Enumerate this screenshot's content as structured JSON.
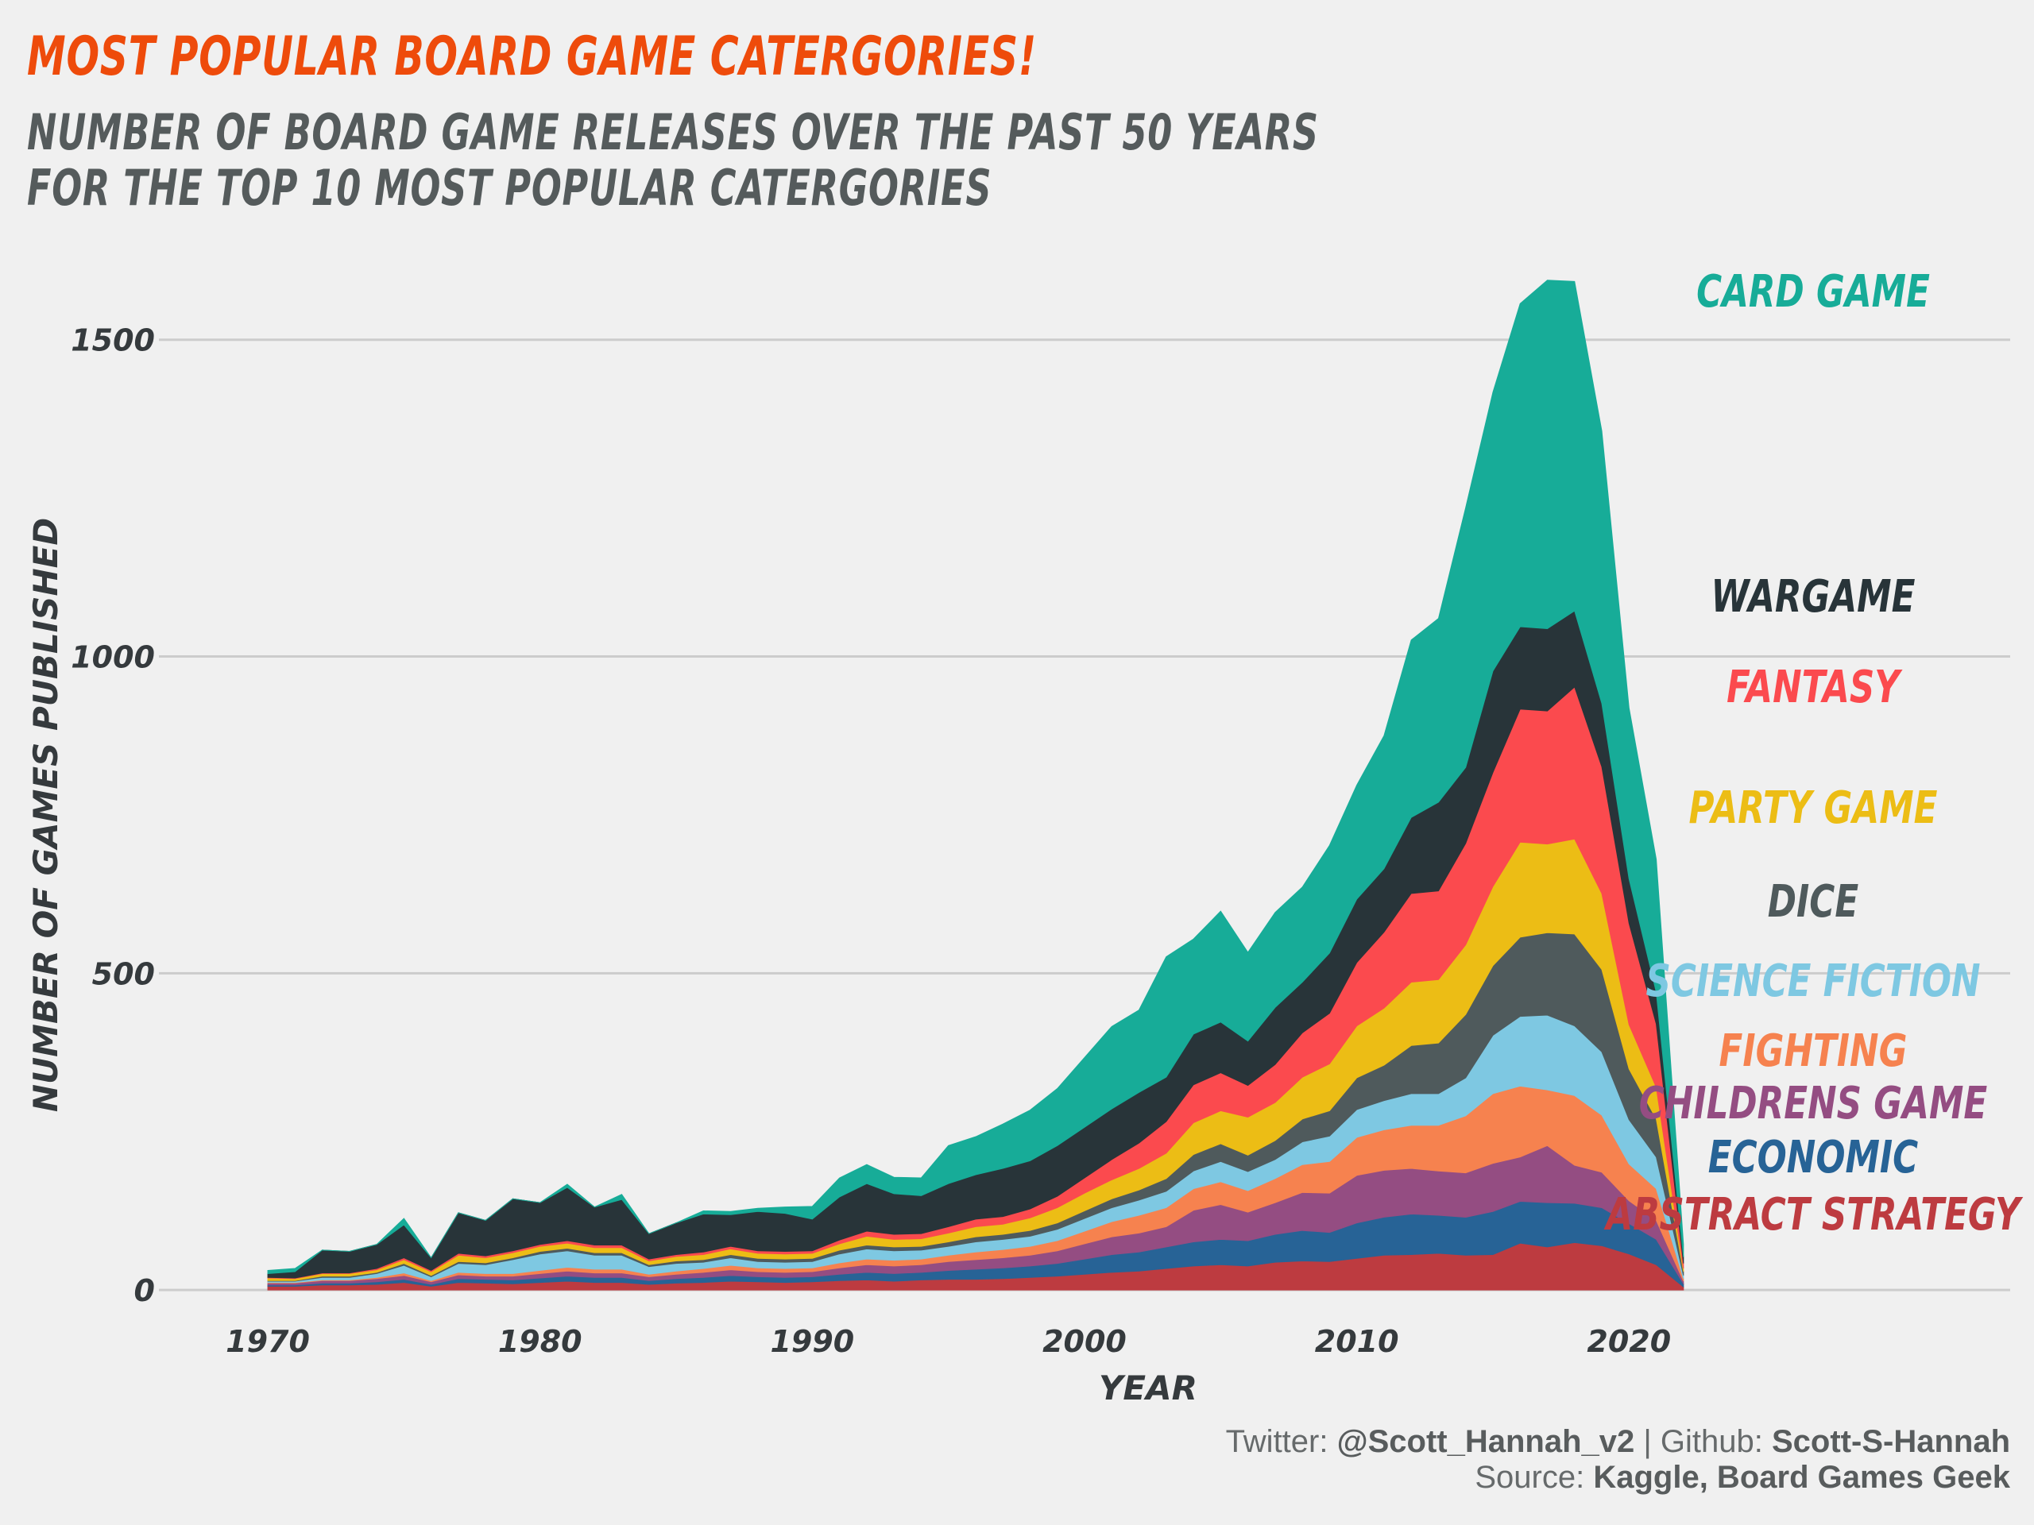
{
  "title": "Most popular board game catergories!",
  "subtitle_line1": "Number of board game releases over the past 50 years",
  "subtitle_line2": "for the top 10 most popular catergories",
  "caption": {
    "twitter_label": "Twitter:",
    "twitter_handle": "@Scott_Hannah_v2",
    "separator": "|",
    "github_label": "Github:",
    "github_handle": "Scott-S-Hannah",
    "source_label": "Source:",
    "source_value": "Kaggle, Board Games Geek"
  },
  "colors": {
    "background": "#f0f0f0",
    "gridline": "#cccccc",
    "title": "#ee4b0b",
    "subtitle": "#555b5c"
  },
  "chart_data": {
    "type": "area",
    "stacked": true,
    "xlabel": "Year",
    "ylabel": "Number of Games Published",
    "xlim": [
      1966,
      2034
    ],
    "ylim": [
      -70,
      1610
    ],
    "xticks": [
      1970,
      1980,
      1990,
      2000,
      2010,
      2020
    ],
    "yticks": [
      0,
      500,
      1000,
      1500
    ],
    "grid": "horizontal",
    "legend": "direct labels on right",
    "x": [
      1970,
      1971,
      1972,
      1973,
      1974,
      1975,
      1976,
      1977,
      1978,
      1979,
      1980,
      1981,
      1982,
      1983,
      1984,
      1985,
      1986,
      1987,
      1988,
      1989,
      1990,
      1991,
      1992,
      1993,
      1994,
      1995,
      1996,
      1997,
      1998,
      1999,
      2000,
      2001,
      2002,
      2003,
      2004,
      2005,
      2006,
      2007,
      2008,
      2009,
      2010,
      2011,
      2012,
      2013,
      2014,
      2015,
      2016,
      2017,
      2018,
      2019,
      2020,
      2021,
      2022
    ],
    "series": [
      {
        "name": "Abstract Strategy",
        "color": "#bd3b40",
        "values": [
          6,
          6,
          8,
          8,
          9,
          12,
          6,
          12,
          11,
          10,
          12,
          14,
          12,
          12,
          9,
          11,
          12,
          14,
          13,
          12,
          13,
          15,
          16,
          14,
          16,
          17,
          17,
          18,
          20,
          22,
          25,
          28,
          30,
          34,
          38,
          40,
          38,
          44,
          46,
          45,
          50,
          55,
          56,
          58,
          55,
          56,
          74,
          68,
          75,
          70,
          57,
          40,
          5
        ]
      },
      {
        "name": "Economic",
        "color": "#276396",
        "values": [
          2,
          2,
          3,
          3,
          4,
          5,
          3,
          6,
          6,
          6,
          7,
          8,
          8,
          8,
          6,
          7,
          8,
          9,
          8,
          8,
          8,
          10,
          12,
          12,
          12,
          14,
          16,
          17,
          18,
          20,
          24,
          28,
          30,
          34,
          38,
          40,
          40,
          44,
          48,
          46,
          56,
          60,
          64,
          60,
          60,
          68,
          66,
          70,
          62,
          60,
          48,
          40,
          5
        ]
      },
      {
        "name": "Childrens Game",
        "color": "#944d82",
        "values": [
          3,
          3,
          4,
          4,
          5,
          6,
          4,
          6,
          5,
          6,
          7,
          8,
          7,
          7,
          6,
          7,
          8,
          9,
          8,
          8,
          8,
          10,
          12,
          12,
          12,
          14,
          15,
          16,
          17,
          20,
          24,
          28,
          30,
          32,
          50,
          55,
          45,
          50,
          60,
          62,
          75,
          74,
          72,
          70,
          70,
          76,
          70,
          90,
          60,
          56,
          36,
          30,
          4
        ]
      },
      {
        "name": "Fighting",
        "color": "#f6824f",
        "values": [
          1,
          1,
          1,
          1,
          2,
          4,
          2,
          4,
          4,
          4,
          5,
          6,
          6,
          6,
          4,
          5,
          6,
          7,
          6,
          6,
          6,
          8,
          9,
          9,
          9,
          10,
          12,
          13,
          14,
          16,
          20,
          24,
          28,
          30,
          34,
          36,
          34,
          38,
          44,
          50,
          60,
          64,
          68,
          72,
          90,
          110,
          112,
          88,
          110,
          90,
          58,
          50,
          4
        ]
      },
      {
        "name": "Science Fiction",
        "color": "#7ec8e2",
        "values": [
          2,
          2,
          4,
          4,
          6,
          12,
          6,
          14,
          14,
          22,
          26,
          26,
          22,
          22,
          12,
          12,
          10,
          12,
          10,
          10,
          10,
          14,
          16,
          15,
          14,
          14,
          16,
          16,
          16,
          18,
          20,
          22,
          24,
          26,
          28,
          32,
          30,
          30,
          36,
          40,
          44,
          46,
          50,
          50,
          60,
          92,
          110,
          118,
          110,
          100,
          70,
          50,
          5
        ]
      },
      {
        "name": "Dice",
        "color": "#4f5a5c",
        "values": [
          1,
          1,
          2,
          2,
          2,
          3,
          2,
          3,
          3,
          3,
          4,
          4,
          4,
          4,
          3,
          4,
          4,
          5,
          5,
          5,
          5,
          6,
          6,
          6,
          6,
          7,
          8,
          8,
          9,
          10,
          12,
          14,
          16,
          20,
          26,
          28,
          26,
          30,
          36,
          40,
          50,
          56,
          76,
          80,
          100,
          110,
          125,
          130,
          145,
          130,
          80,
          60,
          6
        ]
      },
      {
        "name": "Party Game",
        "color": "#ecbd15",
        "values": [
          4,
          3,
          4,
          4,
          4,
          6,
          6,
          10,
          8,
          8,
          8,
          8,
          8,
          8,
          6,
          7,
          8,
          9,
          8,
          8,
          8,
          10,
          14,
          12,
          12,
          14,
          16,
          16,
          20,
          24,
          28,
          30,
          34,
          40,
          50,
          52,
          60,
          60,
          66,
          74,
          82,
          90,
          100,
          100,
          110,
          125,
          150,
          140,
          150,
          120,
          70,
          50,
          5
        ]
      },
      {
        "name": "Fantasy",
        "color": "#fb4a4e",
        "values": [
          1,
          1,
          1,
          1,
          2,
          3,
          2,
          3,
          3,
          3,
          3,
          4,
          4,
          4,
          3,
          3,
          4,
          4,
          4,
          4,
          4,
          6,
          8,
          8,
          8,
          10,
          12,
          12,
          14,
          18,
          24,
          32,
          40,
          50,
          60,
          60,
          50,
          60,
          70,
          80,
          100,
          120,
          140,
          140,
          160,
          180,
          210,
          210,
          240,
          200,
          160,
          100,
          8
        ]
      },
      {
        "name": "Wargame",
        "color": "#283439",
        "values": [
          6,
          10,
          36,
          34,
          38,
          52,
          20,
          64,
          56,
          82,
          66,
          84,
          60,
          72,
          40,
          50,
          60,
          50,
          62,
          60,
          50,
          68,
          75,
          64,
          60,
          68,
          70,
          76,
          76,
          80,
          80,
          80,
          80,
          70,
          80,
          80,
          70,
          90,
          80,
          95,
          100,
          100,
          120,
          140,
          120,
          160,
          130,
          130,
          120,
          100,
          70,
          50,
          10
        ]
      },
      {
        "name": "Card Game",
        "color": "#17ac98",
        "values": [
          5,
          5,
          0,
          0,
          0,
          10,
          0,
          0,
          0,
          0,
          0,
          5,
          0,
          8,
          0,
          0,
          5,
          5,
          5,
          10,
          20,
          30,
          30,
          26,
          28,
          60,
          60,
          70,
          80,
          90,
          110,
          130,
          130,
          190,
          150,
          175,
          140,
          150,
          150,
          170,
          180,
          210,
          280,
          290,
          410,
          440,
          510,
          550,
          520,
          430,
          270,
          210,
          20
        ]
      }
    ]
  }
}
